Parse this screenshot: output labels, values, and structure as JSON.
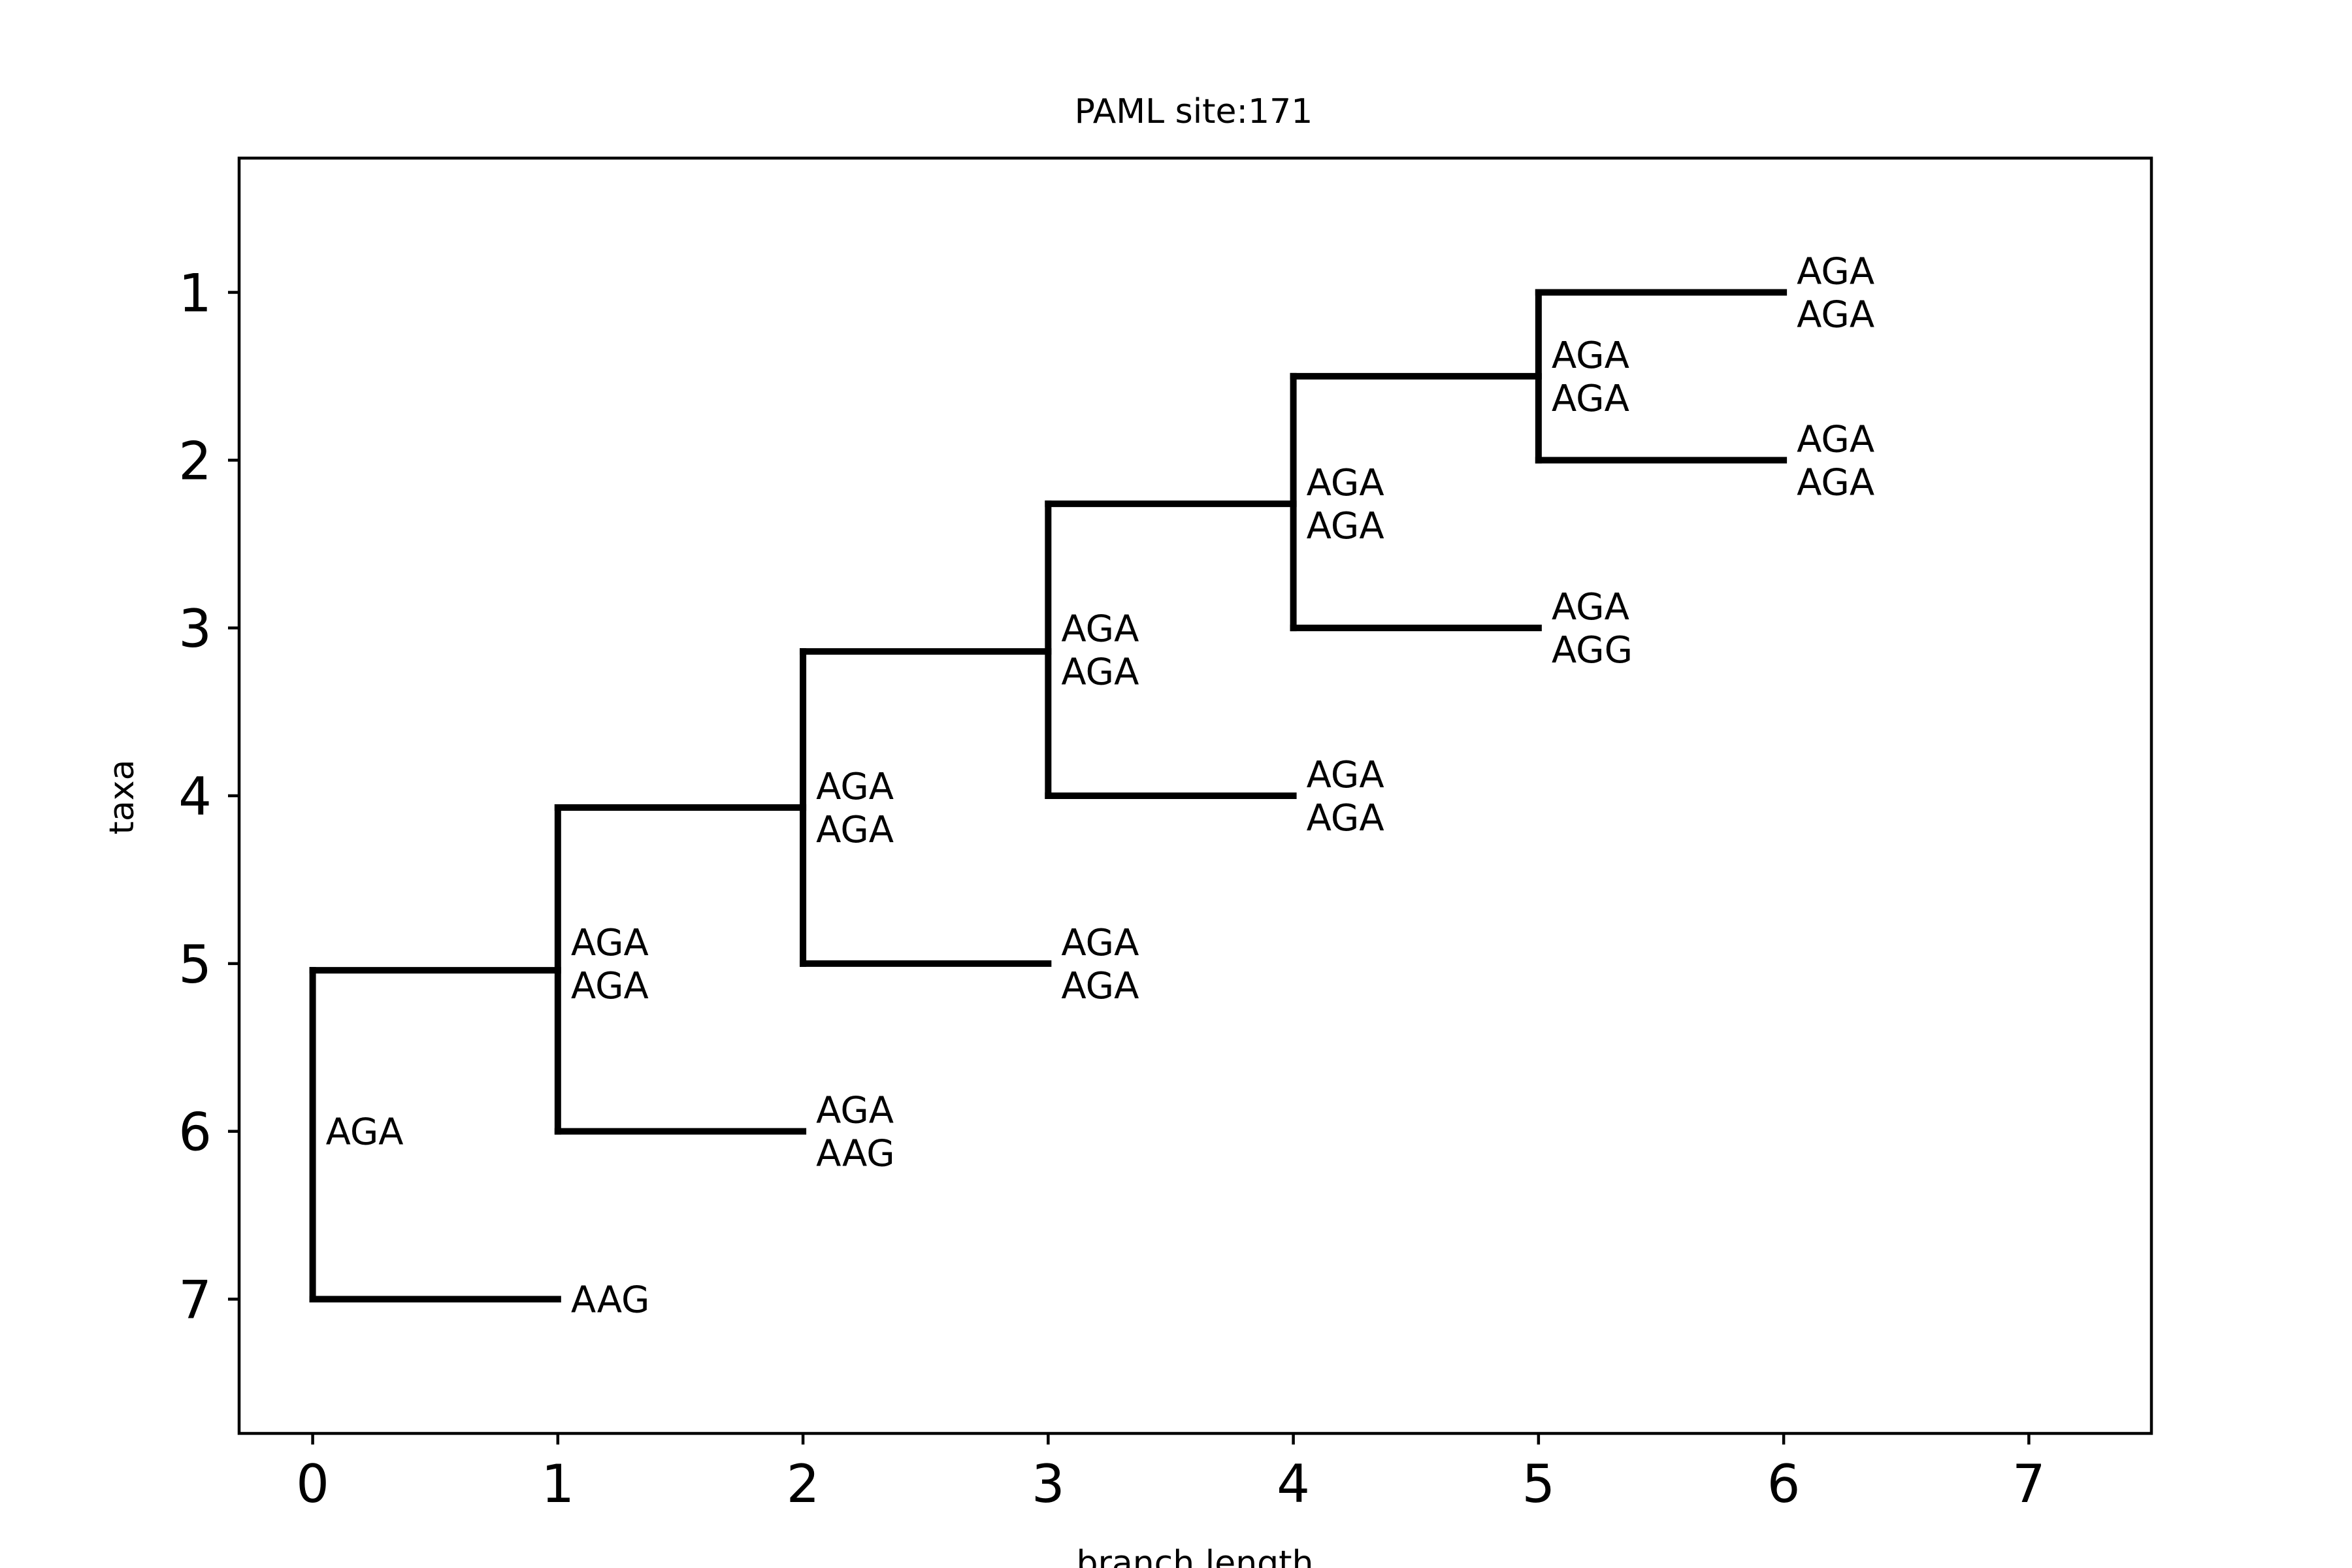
{
  "chart_data": {
    "type": "tree",
    "title": "PAML site:171",
    "xlabel": "branch length",
    "ylabel": "taxa",
    "xlim": [
      -0.3,
      7.5
    ],
    "ylim": [
      0.2,
      7.8
    ],
    "y_inverted": true,
    "grid": false,
    "xticks": [
      0,
      1,
      2,
      3,
      4,
      5,
      6,
      7
    ],
    "yticks": [
      1,
      2,
      3,
      4,
      5,
      6,
      7
    ],
    "colors": {
      "branch": "#000000",
      "axis": "#000000",
      "text": "#000000"
    },
    "branches": [
      {
        "x": [
          0,
          1
        ],
        "y": [
          7,
          7
        ]
      },
      {
        "x": [
          0,
          0
        ],
        "y": [
          5.04,
          7
        ]
      },
      {
        "x": [
          0,
          1
        ],
        "y": [
          5.04,
          5.04
        ]
      },
      {
        "x": [
          1,
          1
        ],
        "y": [
          4.07,
          6
        ]
      },
      {
        "x": [
          1,
          2
        ],
        "y": [
          6,
          6
        ]
      },
      {
        "x": [
          1,
          2
        ],
        "y": [
          4.07,
          4.07
        ]
      },
      {
        "x": [
          2,
          2
        ],
        "y": [
          3.14,
          5
        ]
      },
      {
        "x": [
          2,
          3
        ],
        "y": [
          5,
          5
        ]
      },
      {
        "x": [
          2,
          3
        ],
        "y": [
          3.14,
          3.14
        ]
      },
      {
        "x": [
          3,
          3
        ],
        "y": [
          2.26,
          4
        ]
      },
      {
        "x": [
          3,
          4
        ],
        "y": [
          4,
          4
        ]
      },
      {
        "x": [
          3,
          4
        ],
        "y": [
          2.26,
          2.26
        ]
      },
      {
        "x": [
          4,
          4
        ],
        "y": [
          1.5,
          3
        ]
      },
      {
        "x": [
          4,
          5
        ],
        "y": [
          3,
          3
        ]
      },
      {
        "x": [
          4,
          5
        ],
        "y": [
          1.5,
          1.5
        ]
      },
      {
        "x": [
          5,
          5
        ],
        "y": [
          1,
          2
        ]
      },
      {
        "x": [
          5,
          6
        ],
        "y": [
          1,
          1
        ]
      },
      {
        "x": [
          5,
          6
        ],
        "y": [
          2,
          2
        ]
      }
    ],
    "node_labels": [
      {
        "x": 0,
        "y": 6,
        "lines": [
          "AGA"
        ]
      },
      {
        "x": 1,
        "y": 7,
        "lines": [
          "AAG"
        ]
      },
      {
        "x": 1,
        "y": 5,
        "lines": [
          "AGA",
          "AGA"
        ]
      },
      {
        "x": 2,
        "y": 6,
        "lines": [
          "AGA",
          "AAG"
        ]
      },
      {
        "x": 2,
        "y": 4.07,
        "lines": [
          "AGA",
          "AGA"
        ]
      },
      {
        "x": 3,
        "y": 5,
        "lines": [
          "AGA",
          "AGA"
        ]
      },
      {
        "x": 3,
        "y": 3.13,
        "lines": [
          "AGA",
          "AGA"
        ]
      },
      {
        "x": 4,
        "y": 4,
        "lines": [
          "AGA",
          "AGA"
        ]
      },
      {
        "x": 4,
        "y": 2.26,
        "lines": [
          "AGA",
          "AGA"
        ]
      },
      {
        "x": 5,
        "y": 3,
        "lines": [
          "AGA",
          "AGG"
        ]
      },
      {
        "x": 5,
        "y": 1.5,
        "lines": [
          "AGA",
          "AGA"
        ]
      },
      {
        "x": 6,
        "y": 1,
        "lines": [
          "AGA",
          "AGA"
        ]
      },
      {
        "x": 6,
        "y": 2,
        "lines": [
          "AGA",
          "AGA"
        ]
      }
    ]
  }
}
